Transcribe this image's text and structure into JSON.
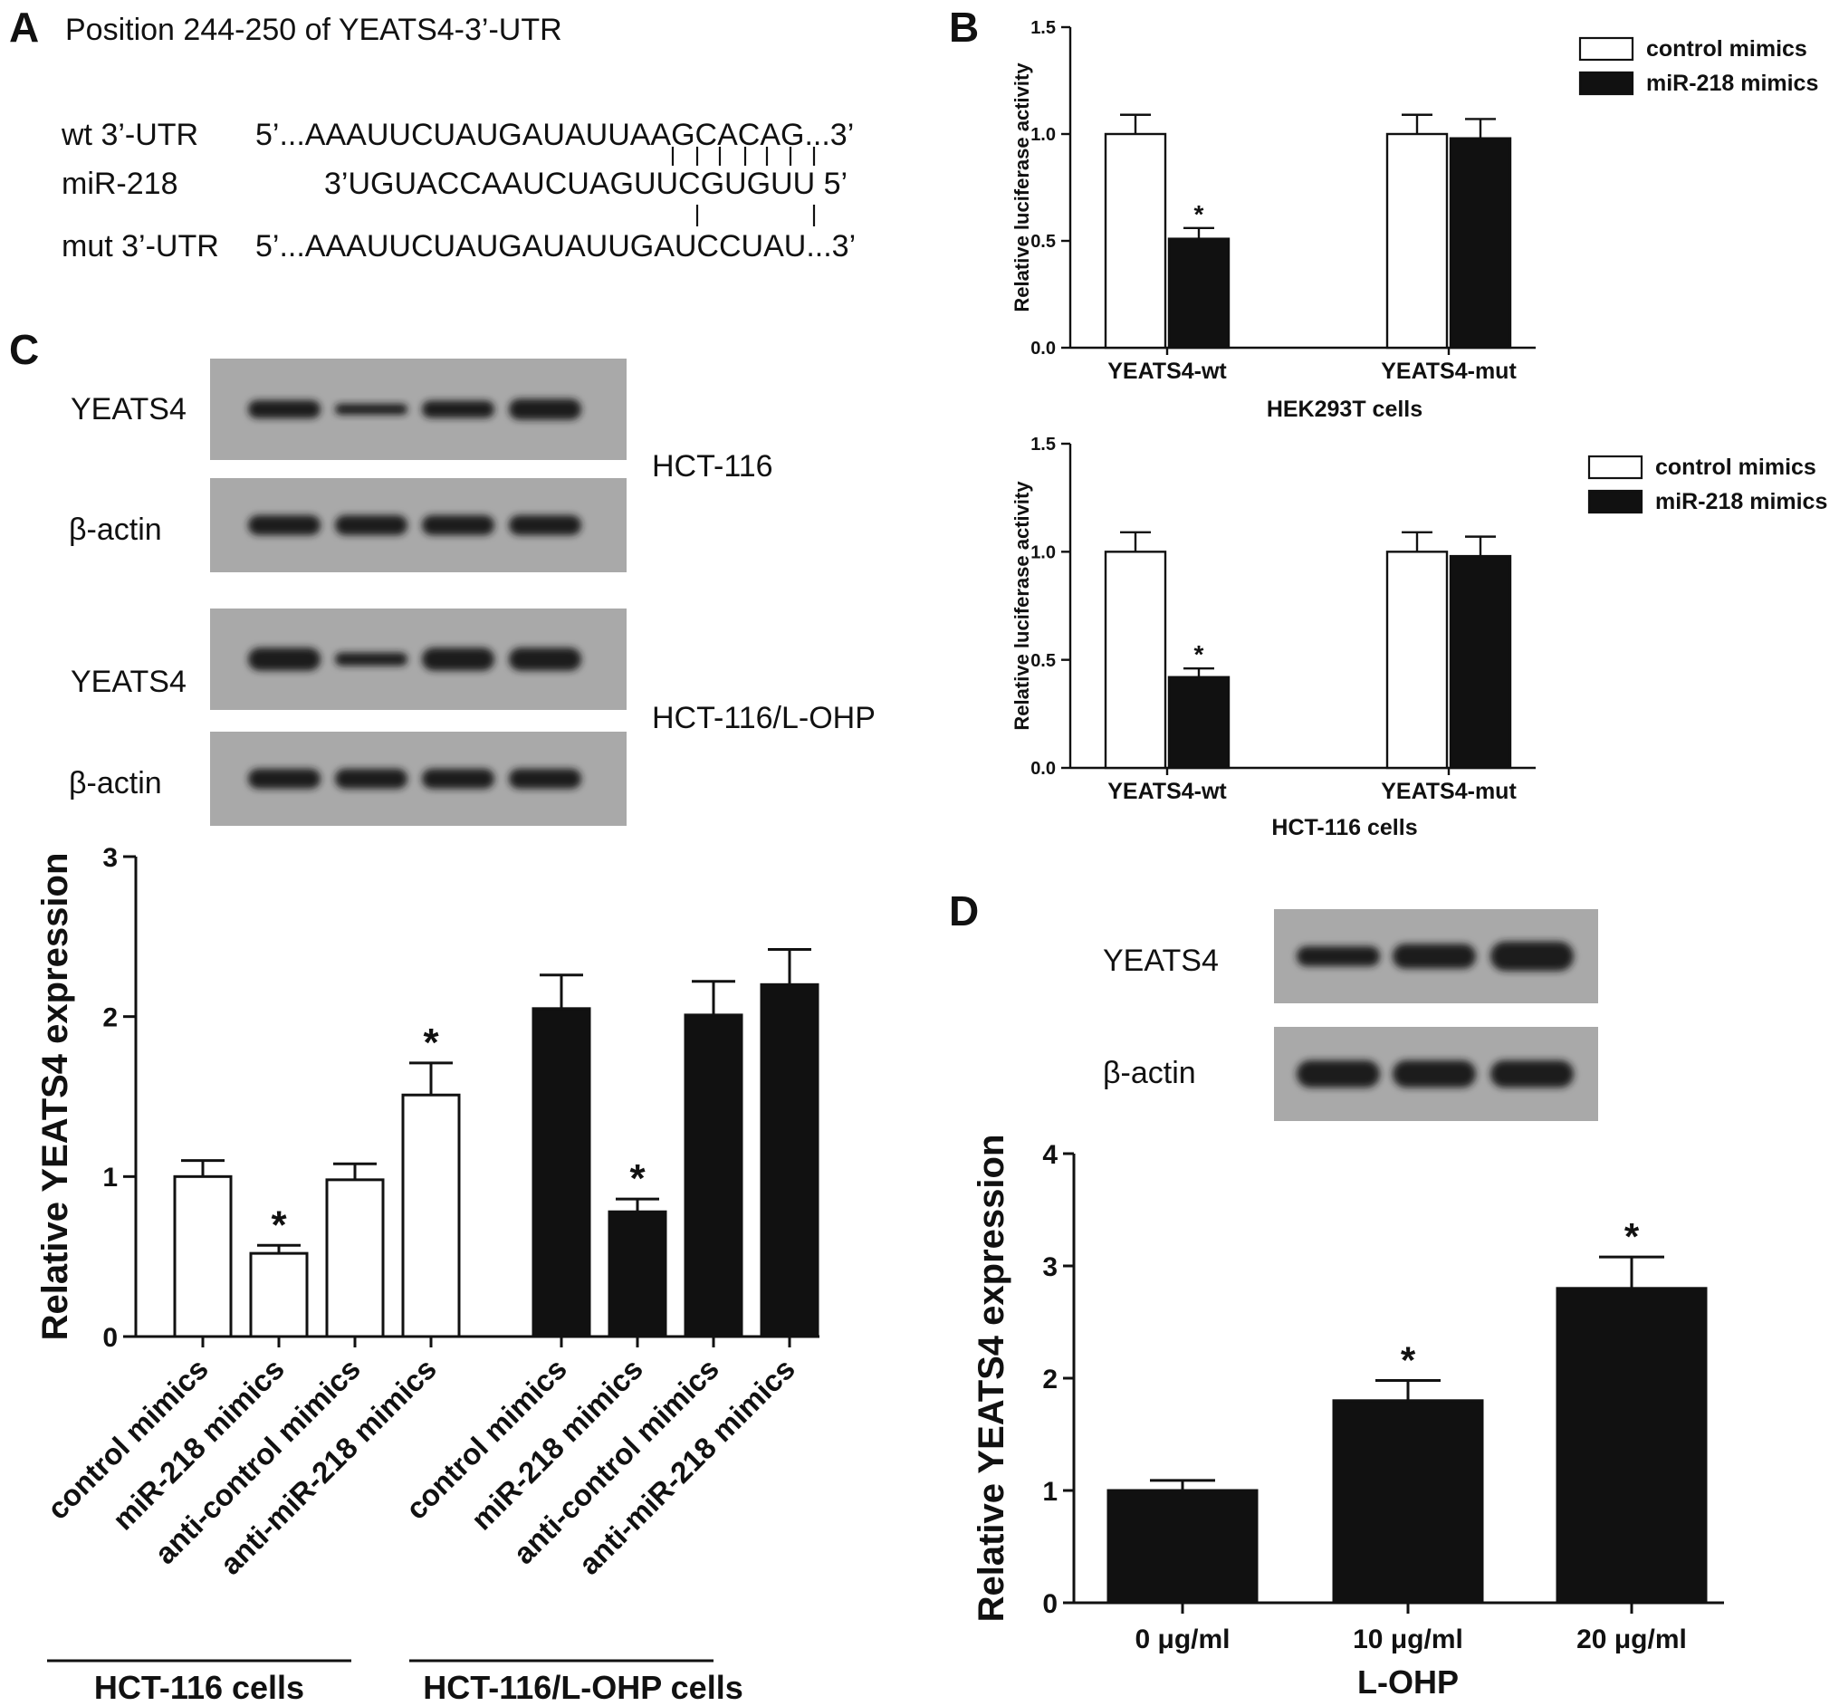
{
  "panelA": {
    "letter": "A",
    "title": "Position 244-250 of YEATS4-3’-UTR",
    "rows": [
      {
        "label": "wt 3’-UTR",
        "seq": "5’...AAAUUCUAUGAUAUUAAGCACAG...3’"
      },
      {
        "label": "miR-218",
        "seq": "3’UGUACCAAUCUAGUUCGUGUU 5’"
      },
      {
        "label": "mut 3’-UTR",
        "seq": "5’...AAAUUCUAUGAUAUUGAUCCUAU...3’"
      }
    ]
  },
  "panelB": {
    "letter": "B",
    "legend": [
      "control mimics",
      "miR-218 mimics"
    ]
  },
  "panelC": {
    "letter": "C",
    "blots": [
      {
        "label": "YEATS4",
        "cell": "HCT-116",
        "bands": [
          1.0,
          0.6,
          0.95,
          1.15
        ]
      },
      {
        "label": "β-actin",
        "cell": "",
        "bands": [
          1.0,
          1.0,
          1.0,
          1.0
        ]
      },
      {
        "label": "YEATS4",
        "cell": "HCT-116/L-OHP",
        "bands": [
          1.05,
          0.6,
          1.05,
          1.05
        ]
      },
      {
        "label": "β-actin",
        "cell": "",
        "bands": [
          1.0,
          1.0,
          1.0,
          1.0
        ]
      }
    ],
    "groups": [
      "HCT-116 cells",
      "HCT-116/L-OHP  cells"
    ]
  },
  "panelD": {
    "letter": "D",
    "blots": [
      {
        "label": "YEATS4",
        "bands": [
          0.85,
          1.05,
          1.25
        ]
      },
      {
        "label": "β-actin",
        "bands": [
          1.0,
          1.0,
          1.0
        ]
      }
    ]
  },
  "chart_data": [
    {
      "type": "bar",
      "panel": "B (top)",
      "categories": [
        "YEATS4-wt",
        "YEATS4-mut"
      ],
      "series": [
        {
          "name": "control mimics",
          "values": [
            1.0,
            1.0
          ],
          "errors": [
            0.09,
            0.09
          ]
        },
        {
          "name": "miR-218 mimics",
          "values": [
            0.51,
            0.98
          ],
          "errors": [
            0.05,
            0.09
          ]
        }
      ],
      "significant": [
        [
          false,
          false
        ],
        [
          true,
          false
        ]
      ],
      "xlabel": "HEK293T cells",
      "ylabel": "Relative luciferase activity",
      "ylim": [
        0.0,
        1.5
      ],
      "yticks": [
        "0.0",
        "0.5",
        "1.0",
        "1.5"
      ],
      "legend": "top-right"
    },
    {
      "type": "bar",
      "panel": "B (bottom)",
      "categories": [
        "YEATS4-wt",
        "YEATS4-mut"
      ],
      "series": [
        {
          "name": "control mimics",
          "values": [
            1.0,
            1.0
          ],
          "errors": [
            0.09,
            0.09
          ]
        },
        {
          "name": "miR-218 mimics",
          "values": [
            0.42,
            0.98
          ],
          "errors": [
            0.04,
            0.09
          ]
        }
      ],
      "significant": [
        [
          false,
          false
        ],
        [
          true,
          false
        ]
      ],
      "xlabel": "HCT-116 cells",
      "ylabel": "Relative luciferase activity",
      "ylim": [
        0.0,
        1.5
      ],
      "yticks": [
        "0.0",
        "0.5",
        "1.0",
        "1.5"
      ],
      "legend": "top-right"
    },
    {
      "type": "bar",
      "panel": "C",
      "categories": [
        "control mimics",
        "miR-218 mimics",
        "anti-control mimics",
        "anti-miR-218 mimics",
        "control mimics",
        "miR-218 mimics",
        "anti-control mimics",
        "anti-miR-218 mimics"
      ],
      "values": [
        1.0,
        0.52,
        0.98,
        1.51,
        2.05,
        0.78,
        2.01,
        2.2
      ],
      "errors": [
        0.1,
        0.05,
        0.1,
        0.2,
        0.21,
        0.08,
        0.21,
        0.22
      ],
      "fills": [
        "white",
        "white",
        "white",
        "white",
        "black",
        "black",
        "black",
        "black"
      ],
      "significant": [
        false,
        true,
        false,
        true,
        false,
        true,
        false,
        false
      ],
      "groups": [
        "HCT-116 cells",
        "HCT-116/L-OHP  cells"
      ],
      "ylabel": "Relative YEATS4 expression",
      "ylim": [
        0,
        3
      ],
      "yticks": [
        "0",
        "1",
        "2",
        "3"
      ]
    },
    {
      "type": "bar",
      "panel": "D",
      "categories": [
        "0 μg/ml",
        "10 μg/ml",
        "20 μg/ml"
      ],
      "values": [
        1.0,
        1.8,
        2.8
      ],
      "errors": [
        0.09,
        0.18,
        0.28
      ],
      "significant": [
        false,
        true,
        true
      ],
      "xlabel": "L-OHP",
      "ylabel": "Relative YEATS4 expression",
      "ylim": [
        0,
        4
      ],
      "yticks": [
        "0",
        "1",
        "2",
        "3",
        "4"
      ]
    }
  ]
}
